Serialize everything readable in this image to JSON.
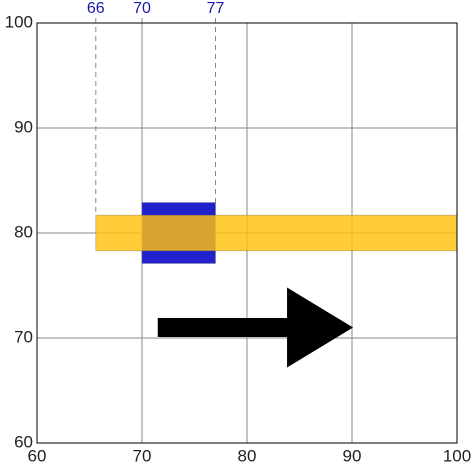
{
  "chart_data": {
    "type": "interval",
    "xlim": [
      60,
      100
    ],
    "ylim": [
      60,
      100
    ],
    "xticks": [
      60,
      70,
      80,
      90,
      100
    ],
    "yticks": [
      60,
      70,
      80,
      90,
      100
    ],
    "grid": true,
    "markers": [
      {
        "value": 65.6,
        "label": "66"
      },
      70,
      77
    ],
    "marker_color": "#1a1aa8",
    "rects": [
      {
        "color": "#2222cc",
        "opacity": 1,
        "x": [
          70,
          77
        ],
        "y": [
          77.1,
          82.9
        ]
      },
      {
        "color": "#ffc20e",
        "opacity": 0.82,
        "x": [
          65.6,
          100
        ],
        "y": [
          78.3,
          81.7
        ]
      }
    ],
    "arrow": {
      "color": "#000000",
      "x": [
        71.5,
        90.1
      ],
      "y": 71
    }
  }
}
